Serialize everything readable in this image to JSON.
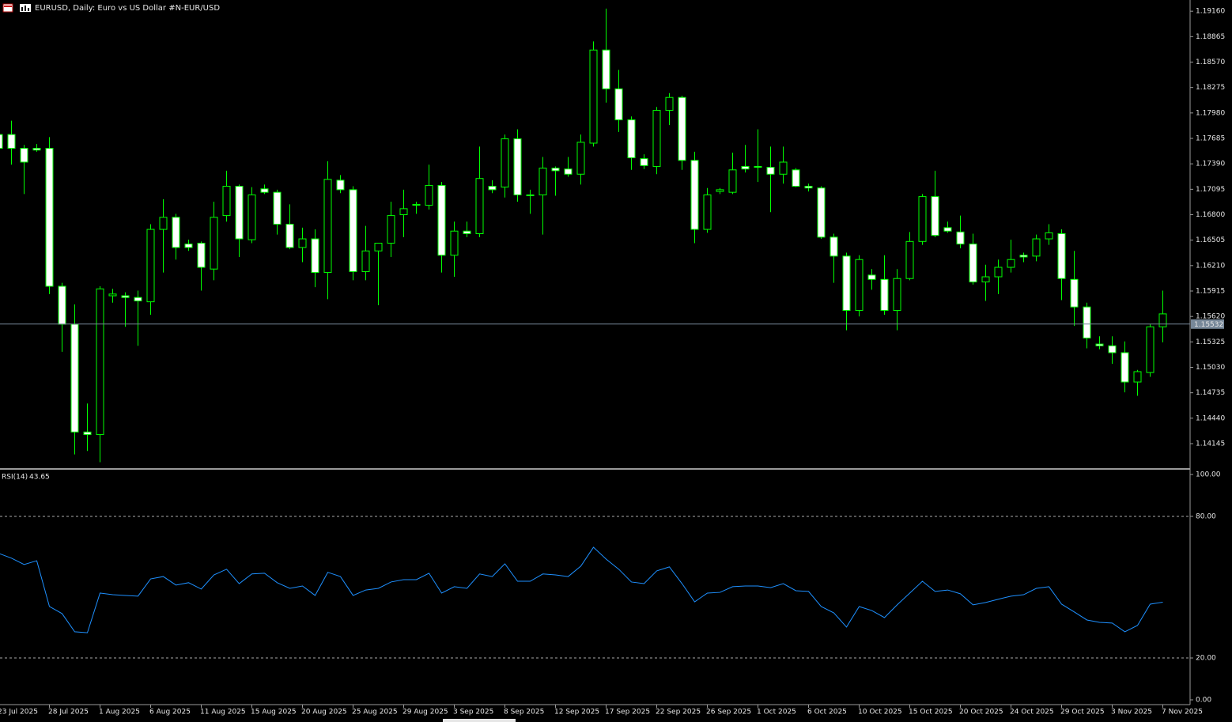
{
  "chart_data": [
    {
      "type": "candlestick",
      "title": "EURUSD, Daily:  Euro vs US Dollar #N-EUR/USD",
      "categories": [
        "23 Jul 2025",
        null,
        null,
        null,
        "28 Jul 2025",
        null,
        null,
        null,
        "1 Aug 2025",
        null,
        null,
        null,
        "6 Aug 2025",
        null,
        null,
        null,
        "11 Aug 2025",
        null,
        null,
        null,
        "15 Aug 2025",
        null,
        null,
        null,
        "20 Aug 2025",
        null,
        null,
        null,
        "25 Aug 2025",
        null,
        null,
        null,
        "29 Aug 2025",
        null,
        null,
        null,
        "3 Sep 2025",
        null,
        null,
        null,
        "8 Sep 2025",
        null,
        null,
        null,
        "12 Sep 2025",
        null,
        null,
        null,
        "17 Sep 2025",
        null,
        null,
        null,
        "22 Sep 2025",
        null,
        null,
        null,
        "26 Sep 2025",
        null,
        null,
        null,
        "1 Oct 2025",
        null,
        null,
        null,
        "6 Oct 2025",
        null,
        null,
        null,
        "10 Oct 2025",
        null,
        null,
        null,
        "15 Oct 2025",
        null,
        null,
        null,
        "20 Oct 2025",
        null,
        null,
        null,
        "24 Oct 2025",
        null,
        null,
        null,
        "29 Oct 2025",
        null,
        null,
        null,
        "3 Nov 2025",
        null,
        null,
        null,
        "7 Nov 2025"
      ],
      "open": [
        1.1773,
        1.1773,
        1.1757,
        1.1757,
        1.1757,
        1.1597,
        1.1553,
        1.1428,
        1.1425,
        1.1586,
        1.1586,
        1.1584,
        1.1579,
        1.1663,
        1.1677,
        1.1646,
        1.1647,
        1.1617,
        1.1679,
        1.1713,
        1.1651,
        1.171,
        1.1706,
        1.1669,
        1.1642,
        1.1652,
        1.1613,
        1.172,
        1.1709,
        1.1614,
        1.1638,
        1.1647,
        1.168,
        1.1691,
        1.1691,
        1.1714,
        1.1633,
        1.1661,
        1.1658,
        1.1713,
        1.1712,
        1.1768,
        1.1703,
        1.1703,
        1.1734,
        1.1733,
        1.1727,
        1.1763,
        1.1871,
        1.1826,
        1.179,
        1.1745,
        1.1736,
        1.1801,
        1.1816,
        1.1743,
        1.1663,
        1.1707,
        1.1706,
        1.1736,
        1.1736,
        1.1735,
        1.1727,
        1.1732,
        1.1713,
        1.1711,
        1.1654,
        1.1632,
        1.1569,
        1.161,
        1.1605,
        1.1569,
        1.1606,
        1.1649,
        1.1701,
        1.1665,
        1.166,
        1.1646,
        1.1602,
        1.1608,
        1.1619,
        1.1633,
        1.1632,
        1.1652,
        1.1658,
        1.1605,
        1.1573,
        1.153,
        1.1528,
        1.152,
        1.1486,
        1.1497,
        1.155
      ],
      "high": [
        1.1787,
        1.1789,
        1.1761,
        1.1762,
        1.177,
        1.1601,
        1.1576,
        1.1461,
        1.1597,
        1.1594,
        1.159,
        1.1592,
        1.1669,
        1.1698,
        1.1681,
        1.1651,
        1.1649,
        1.1695,
        1.1731,
        1.1715,
        1.1712,
        1.1715,
        1.1709,
        1.1692,
        1.1665,
        1.1663,
        1.1742,
        1.1726,
        1.1713,
        1.1667,
        1.1647,
        1.1695,
        1.1709,
        1.1695,
        1.1738,
        1.1718,
        1.1672,
        1.1672,
        1.1759,
        1.172,
        1.1773,
        1.1779,
        1.1709,
        1.1747,
        1.1736,
        1.1747,
        1.1773,
        1.1881,
        1.1919,
        1.1848,
        1.1794,
        1.175,
        1.1805,
        1.1821,
        1.1818,
        1.1753,
        1.1711,
        1.1711,
        1.1752,
        1.1761,
        1.1779,
        1.1759,
        1.1759,
        1.1734,
        1.1716,
        1.1713,
        1.1658,
        1.1636,
        1.1633,
        1.1617,
        1.1633,
        1.1617,
        1.166,
        1.1704,
        1.1731,
        1.1672,
        1.1679,
        1.1658,
        1.1622,
        1.1628,
        1.1651,
        1.1636,
        1.1657,
        1.1669,
        1.1663,
        1.1638,
        1.1578,
        1.1539,
        1.1539,
        1.1533,
        1.15,
        1.1553,
        1.1592
      ],
      "low": [
        1.1741,
        1.1738,
        1.1704,
        1.1753,
        1.1588,
        1.1521,
        1.1402,
        1.1406,
        1.1393,
        1.1578,
        1.155,
        1.1528,
        1.1564,
        1.1613,
        1.1628,
        1.1638,
        1.1592,
        1.1604,
        1.1672,
        1.1631,
        1.1647,
        1.1704,
        1.1657,
        1.164,
        1.1625,
        1.1596,
        1.1582,
        1.1705,
        1.1604,
        1.1604,
        1.1575,
        1.1631,
        1.1654,
        1.1681,
        1.1686,
        1.1613,
        1.1608,
        1.1654,
        1.1654,
        1.1705,
        1.17,
        1.1695,
        1.1681,
        1.1657,
        1.1702,
        1.1724,
        1.1715,
        1.1759,
        1.181,
        1.1776,
        1.1732,
        1.1733,
        1.1727,
        1.1784,
        1.1732,
        1.1647,
        1.1659,
        1.1704,
        1.1704,
        1.1729,
        1.1718,
        1.1683,
        1.1716,
        1.1712,
        1.1707,
        1.1652,
        1.1601,
        1.1546,
        1.1562,
        1.1593,
        1.1564,
        1.1546,
        1.1604,
        1.1645,
        1.1654,
        1.1659,
        1.1641,
        1.1599,
        1.158,
        1.1588,
        1.1613,
        1.1625,
        1.1626,
        1.1645,
        1.1581,
        1.1551,
        1.1525,
        1.1524,
        1.1507,
        1.1474,
        1.147,
        1.1492,
        1.1532
      ],
      "close": [
        1.1757,
        1.1757,
        1.1741,
        1.1755,
        1.1597,
        1.1553,
        1.1428,
        1.1425,
        1.1594,
        1.1588,
        1.1584,
        1.158,
        1.1663,
        1.1677,
        1.1642,
        1.1642,
        1.1619,
        1.1677,
        1.1713,
        1.1652,
        1.1703,
        1.1706,
        1.1669,
        1.1642,
        1.1652,
        1.1613,
        1.1721,
        1.1709,
        1.1614,
        1.1638,
        1.1647,
        1.1679,
        1.1687,
        1.1692,
        1.1714,
        1.1633,
        1.1661,
        1.1658,
        1.1722,
        1.1709,
        1.1768,
        1.1703,
        1.1702,
        1.1734,
        1.1731,
        1.1727,
        1.1764,
        1.1871,
        1.1826,
        1.179,
        1.1746,
        1.1737,
        1.1801,
        1.1816,
        1.1743,
        1.1663,
        1.1703,
        1.1709,
        1.1732,
        1.1733,
        1.1735,
        1.1727,
        1.1741,
        1.1713,
        1.1711,
        1.1654,
        1.1632,
        1.1569,
        1.1628,
        1.1605,
        1.1569,
        1.1606,
        1.1649,
        1.1701,
        1.1656,
        1.1661,
        1.1646,
        1.1602,
        1.1608,
        1.1619,
        1.1628,
        1.1631,
        1.1652,
        1.1659,
        1.1606,
        1.1573,
        1.1537,
        1.1528,
        1.152,
        1.1486,
        1.1498,
        1.155,
        1.1565
      ],
      "up_color": "#000000",
      "down_color": "#ffffff",
      "wick_color": "#00ff00",
      "current_price": 1.15532,
      "price_line_color": "#778899",
      "ylim": [
        1.1387,
        1.1929
      ],
      "yticks": [
        {
          "value": 1.1916,
          "label": "1.19160"
        },
        1.18865,
        {
          "value": 1.1857,
          "label": "1.18570"
        },
        1.18275,
        {
          "value": 1.1798,
          "label": "1.17980"
        },
        1.17685,
        {
          "value": 1.1739,
          "label": "1.17390"
        },
        1.17095,
        {
          "value": 1.168,
          "label": "1.16800"
        },
        1.16505,
        {
          "value": 1.1621,
          "label": "1.16210"
        },
        1.15915,
        {
          "value": 1.1562,
          "label": "1.15620"
        },
        1.15325,
        {
          "value": 1.1503,
          "label": "1.15030"
        },
        1.14735,
        {
          "value": 1.1444,
          "label": "1.14440"
        },
        1.14145
      ]
    },
    {
      "type": "line",
      "title": "RSI(14)",
      "color": "#1e90ff",
      "values": [
        64.3,
        62.3,
        59.6,
        61.2,
        41.8,
        38.8,
        31.1,
        30.7,
        47.5,
        46.8,
        46.5,
        46.2,
        53.5,
        54.5,
        50.9,
        51.9,
        49.2,
        55.2,
        57.6,
        51.5,
        55.6,
        55.9,
        51.9,
        49.5,
        50.5,
        46.5,
        56.3,
        54.5,
        46.5,
        48.8,
        49.5,
        52.2,
        53.2,
        53.2,
        55.9,
        47.5,
        50.2,
        49.5,
        55.6,
        54.5,
        59.9,
        52.5,
        52.5,
        55.6,
        55.2,
        54.5,
        58.9,
        66.9,
        61.9,
        57.6,
        52.2,
        51.5,
        56.9,
        58.6,
        51.5,
        43.8,
        47.5,
        47.8,
        50.2,
        50.5,
        50.5,
        49.8,
        51.5,
        48.5,
        48.2,
        41.8,
        39.1,
        33.1,
        41.8,
        40.1,
        37.1,
        42.5,
        47.5,
        52.5,
        48.2,
        48.8,
        47.2,
        42.5,
        43.5,
        44.9,
        46.2,
        46.8,
        49.5,
        50.2,
        42.8,
        39.5,
        36.1,
        35.1,
        34.8,
        31.1,
        33.8,
        42.8,
        43.65
      ],
      "levels": [
        80,
        20
      ],
      "ylim": [
        0,
        100
      ],
      "yticks": [
        {
          "value": 100,
          "label": "100.00"
        },
        {
          "value": 80,
          "label": "80.00"
        },
        {
          "value": 20,
          "label": "20.00"
        },
        {
          "value": 0,
          "label": "0.00"
        }
      ]
    }
  ]
}
